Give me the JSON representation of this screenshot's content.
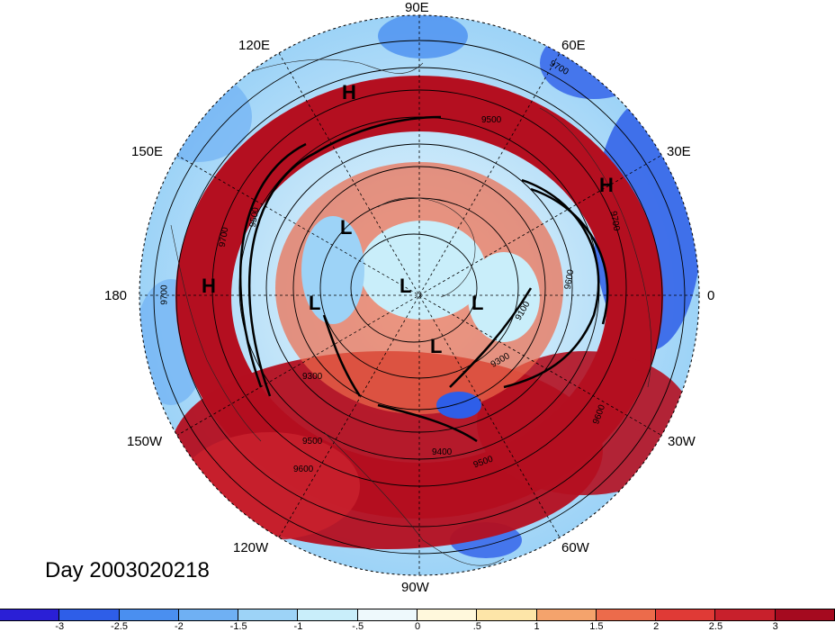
{
  "title": "Day 2003020218",
  "lon_labels": [
    "90E",
    "60E",
    "30E",
    "0",
    "30W",
    "60W",
    "90W",
    "120W",
    "150W",
    "180",
    "150E",
    "120E"
  ],
  "pressure_systems": [
    "H",
    "H",
    "H",
    "L",
    "L",
    "L",
    "L",
    "L"
  ],
  "contour_labels": [
    "9700",
    "9500",
    "9700",
    "9700",
    "9500",
    "9700",
    "9300",
    "9300",
    "9500",
    "9400",
    "9500",
    "9600",
    "9600",
    "9100",
    "9600"
  ],
  "colorbar": {
    "ticks": [
      "-3",
      "-2.5",
      "-2",
      "-1.5",
      "-1",
      "-.5",
      "0",
      ".5",
      "1",
      "1.5",
      "2",
      "2.5",
      "3"
    ],
    "colors": [
      "#2a1fd6",
      "#2e5ee8",
      "#4a8ff0",
      "#6fb0f3",
      "#9dd3f7",
      "#c9eefa",
      "#eef9fc",
      "#fff8dc",
      "#fde5a8",
      "#f4a36c",
      "#ec6b4b",
      "#e03a36",
      "#c8202c",
      "#a50a1f"
    ]
  },
  "colors": {
    "warm_ring": "#b40f20",
    "cold": "#4a8ff0",
    "ocean_light": "#c9eefa"
  }
}
